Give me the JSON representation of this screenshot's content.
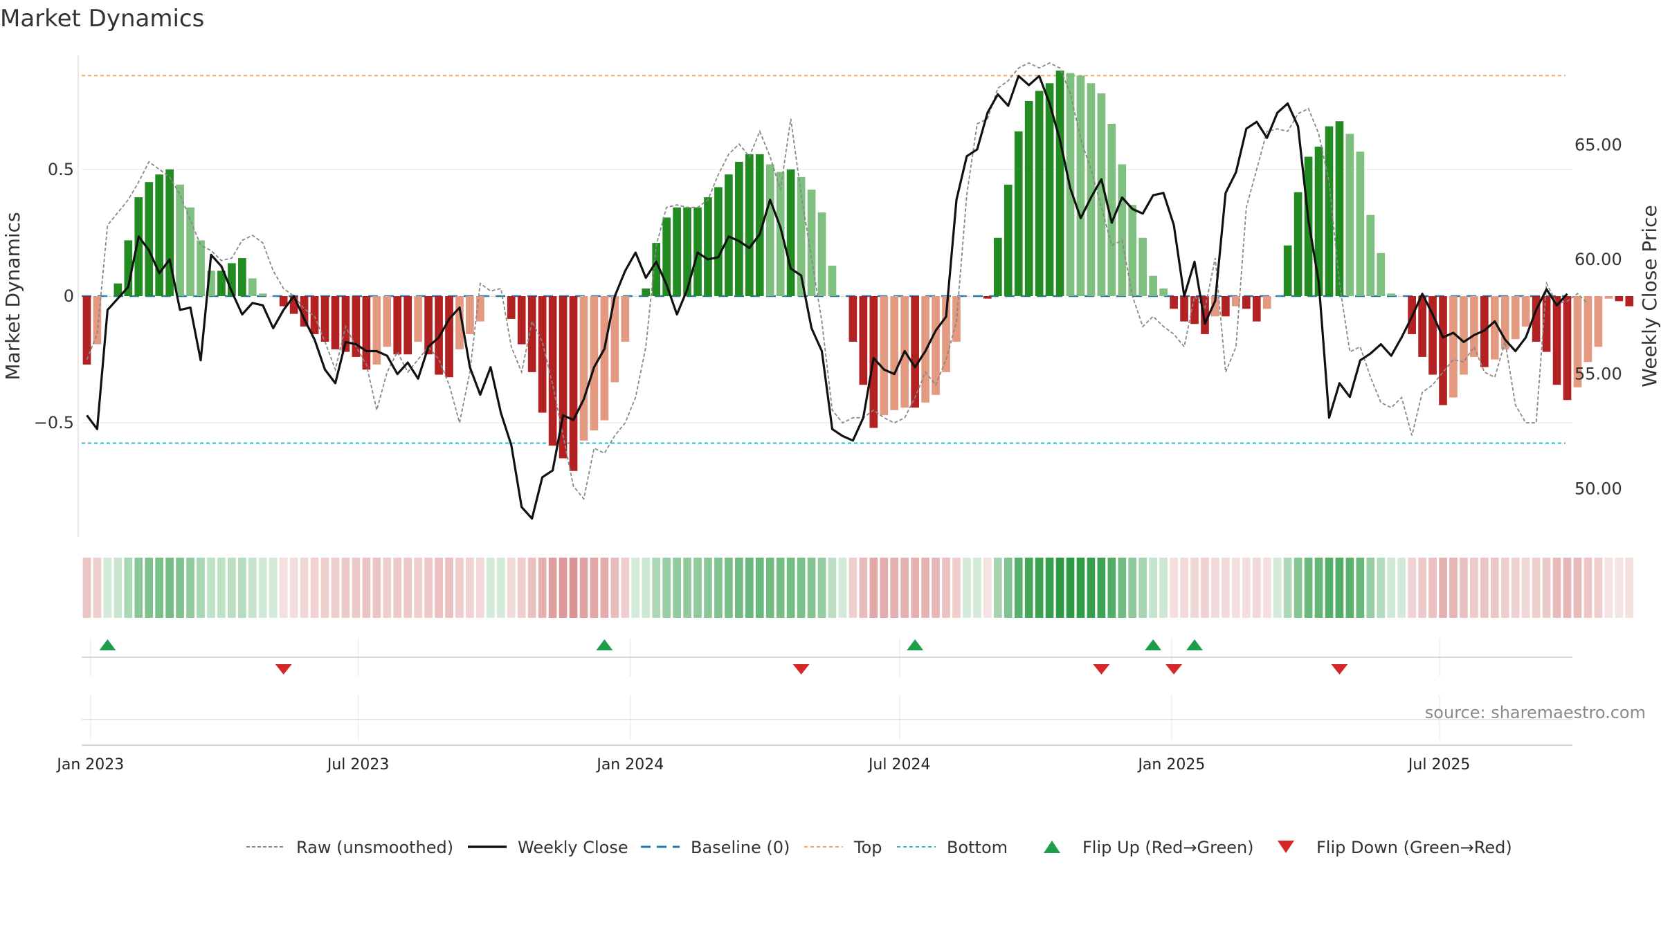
{
  "title": "Market Dynamics",
  "source": "source: sharemaestro.com",
  "colors": {
    "green_strong": "#228b22",
    "green_light": "#7fbf7f",
    "red_strong": "#b22222",
    "red_light": "#e39a80",
    "top_line": "#f4a460",
    "bottom_line": "#22b8cf",
    "baseline": "#1f77b4",
    "close_line": "#111111",
    "raw_line": "#888888",
    "flip_up": "#1e9e4a",
    "flip_down": "#d62728"
  },
  "chart_data": {
    "type": "bar",
    "title": "Market Dynamics",
    "ylabel": "Market Dynamics",
    "y2label": "Weekly Close Price",
    "ylim": [
      -0.95,
      0.95
    ],
    "y2lim": [
      47.9,
      68.9
    ],
    "yticks": [
      "0.5",
      "0",
      "−0.5"
    ],
    "y2ticks": [
      "65.00",
      "60.00",
      "55.00",
      "50.00"
    ],
    "xticks": [
      "Jan 2023",
      "Jul 2023",
      "Jan 2024",
      "Jul 2024",
      "Jan 2025",
      "Jul 2025"
    ],
    "xtick_dates": [
      "2023-01-01",
      "2023-07-01",
      "2024-01-01",
      "2024-07-01",
      "2025-01-01",
      "2025-07-01"
    ],
    "x_start": "2022-12-26",
    "weeks": 144,
    "reference_lines": {
      "top": 0.87,
      "bottom": -0.58,
      "baseline": 0
    },
    "grid": true,
    "legend_position": "bottom",
    "series": [
      {
        "name": "Raw (unsmoothed)",
        "kind": "dashed-line",
        "values": [
          -0.25,
          -0.15,
          0.28,
          0.33,
          0.38,
          0.45,
          0.53,
          0.5,
          0.47,
          0.4,
          0.3,
          0.2,
          0.18,
          0.14,
          0.15,
          0.22,
          0.24,
          0.21,
          0.1,
          0.03,
          0,
          -0.05,
          -0.08,
          -0.18,
          -0.29,
          -0.12,
          -0.2,
          -0.27,
          -0.45,
          -0.3,
          -0.22,
          -0.3,
          -0.25,
          -0.2,
          -0.25,
          -0.35,
          -0.5,
          -0.3,
          0.05,
          0.02,
          0.03,
          -0.2,
          -0.3,
          -0.1,
          -0.18,
          -0.35,
          -0.55,
          -0.75,
          -0.8,
          -0.6,
          -0.62,
          -0.55,
          -0.5,
          -0.4,
          -0.2,
          0.2,
          0.35,
          0.36,
          0.35,
          0.35,
          0.38,
          0.48,
          0.56,
          0.6,
          0.55,
          0.65,
          0.55,
          0.42,
          0.7,
          0.4,
          0.15,
          -0.1,
          -0.45,
          -0.5,
          -0.48,
          -0.48,
          -0.45,
          -0.48,
          -0.5,
          -0.48,
          -0.4,
          -0.3,
          -0.35,
          -0.25,
          -0.1,
          0.4,
          0.68,
          0.7,
          0.82,
          0.85,
          0.9,
          0.92,
          0.9,
          0.92,
          0.9,
          0.8,
          0.62,
          0.5,
          0.35,
          0.2,
          0.22,
          0,
          -0.12,
          -0.08,
          -0.12,
          -0.15,
          -0.2,
          0,
          -0.05,
          0.15,
          -0.3,
          -0.2,
          0.35,
          0.5,
          0.65,
          0.66,
          0.65,
          0.72,
          0.74,
          0.64,
          0.45,
          0.05,
          -0.22,
          -0.2,
          -0.32,
          -0.42,
          -0.44,
          -0.4,
          -0.55,
          -0.38,
          -0.35,
          -0.3,
          -0.25,
          -0.26,
          -0.2,
          -0.3,
          -0.32,
          -0.18,
          -0.43,
          -0.5,
          -0.5,
          0.05,
          -0.03,
          -0.02,
          0.01,
          -0.03
        ]
      },
      {
        "name": "Weekly Close",
        "kind": "line",
        "values": [
          53.2,
          52.6,
          57.8,
          58.3,
          58.8,
          61.0,
          60.4,
          59.4,
          60.0,
          57.8,
          57.9,
          55.6,
          60.2,
          59.7,
          58.6,
          57.6,
          58.1,
          58.0,
          57.0,
          57.8,
          58.4,
          57.4,
          56.5,
          55.2,
          54.6,
          56.4,
          56.3,
          56.0,
          56.0,
          55.8,
          55.0,
          55.5,
          54.8,
          56.2,
          56.6,
          57.4,
          57.9,
          55.3,
          54.1,
          55.3,
          53.3,
          51.9,
          49.2,
          48.7,
          50.5,
          50.8,
          53.2,
          53.0,
          53.9,
          55.3,
          56.1,
          58.4,
          59.5,
          60.3,
          59.2,
          59.9,
          58.9,
          57.6,
          58.7,
          60.3,
          60.0,
          60.1,
          61.0,
          60.8,
          60.5,
          61.1,
          62.6,
          61.4,
          59.6,
          59.3,
          57.0,
          56.0,
          52.6,
          52.3,
          52.1,
          53.1,
          55.7,
          55.2,
          55.0,
          56.0,
          55.3,
          56.0,
          56.9,
          57.5,
          62.6,
          64.5,
          64.8,
          66.4,
          67.2,
          66.7,
          68.0,
          67.6,
          68.0,
          66.8,
          65.2,
          63.1,
          61.8,
          62.7,
          63.5,
          61.6,
          62.7,
          62.2,
          62.0,
          62.8,
          62.9,
          61.5,
          58.4,
          59.9,
          57.2,
          58.2,
          62.9,
          63.8,
          65.7,
          66.0,
          65.3,
          66.4,
          66.8,
          65.8,
          61.7,
          59.0,
          53.1,
          54.6,
          54.0,
          55.6,
          55.9,
          56.3,
          55.8,
          56.6,
          57.5,
          58.5,
          57.6,
          56.6,
          56.8,
          56.4,
          56.7,
          56.9,
          57.3,
          56.5,
          56.0,
          56.6,
          57.8,
          58.7,
          58.0,
          58.5
        ]
      },
      {
        "name": "Baseline (0)",
        "kind": "dashed-line"
      },
      {
        "name": "Top",
        "kind": "dotted-line"
      },
      {
        "name": "Bottom",
        "kind": "dotted-line"
      },
      {
        "name": "Market Dynamics bars",
        "kind": "bars",
        "values": [
          -0.27,
          -0.19,
          0,
          0.05,
          0.22,
          0.39,
          0.45,
          0.48,
          0.5,
          0.44,
          0.35,
          0.22,
          0.1,
          0.1,
          0.13,
          0.15,
          0.07,
          0.01,
          0,
          -0.04,
          -0.07,
          -0.12,
          -0.15,
          -0.18,
          -0.21,
          -0.22,
          -0.24,
          -0.29,
          -0.27,
          -0.2,
          -0.23,
          -0.23,
          -0.18,
          -0.23,
          -0.31,
          -0.32,
          -0.21,
          -0.15,
          -0.1,
          0,
          0,
          -0.09,
          -0.19,
          -0.3,
          -0.46,
          -0.59,
          -0.64,
          -0.69,
          -0.57,
          -0.53,
          -0.49,
          -0.34,
          -0.18,
          0,
          0.03,
          0.21,
          0.31,
          0.35,
          0.35,
          0.35,
          0.39,
          0.43,
          0.48,
          0.53,
          0.56,
          0.56,
          0.52,
          0.49,
          0.5,
          0.47,
          0.42,
          0.33,
          0.12,
          0,
          -0.18,
          -0.35,
          -0.52,
          -0.47,
          -0.45,
          -0.44,
          -0.44,
          -0.42,
          -0.39,
          -0.3,
          -0.18,
          0,
          0,
          -0.01,
          0.23,
          0.44,
          0.65,
          0.77,
          0.81,
          0.84,
          0.89,
          0.88,
          0.87,
          0.84,
          0.8,
          0.68,
          0.52,
          0.36,
          0.23,
          0.08,
          0.03,
          -0.05,
          -0.1,
          -0.11,
          -0.15,
          -0.08,
          -0.08,
          -0.04,
          -0.05,
          -0.1,
          -0.05,
          0,
          0.2,
          0.41,
          0.55,
          0.59,
          0.67,
          0.69,
          0.64,
          0.57,
          0.32,
          0.17,
          0.01,
          0,
          -0.15,
          -0.24,
          -0.31,
          -0.43,
          -0.4,
          -0.31,
          -0.24,
          -0.28,
          -0.25,
          -0.21,
          -0.17,
          -0.12,
          -0.18,
          -0.22,
          -0.35,
          -0.41,
          -0.36,
          -0.26,
          -0.2,
          -0.01,
          -0.02,
          -0.04
        ]
      },
      {
        "name": "Flip Up (Red→Green)",
        "kind": "marker-up",
        "weeks": [
          2,
          50,
          80,
          103,
          107
        ]
      },
      {
        "name": "Flip Down (Green→Red)",
        "kind": "marker-down",
        "weeks": [
          19,
          69,
          98,
          105,
          121
        ]
      }
    ]
  },
  "legend": [
    {
      "label": "Raw (unsmoothed)",
      "kind": "dashed-gray"
    },
    {
      "label": "Weekly Close",
      "kind": "solid-black"
    },
    {
      "label": "Baseline (0)",
      "kind": "dashed-blue"
    },
    {
      "label": "Top",
      "kind": "dotted-orange"
    },
    {
      "label": "Bottom",
      "kind": "dotted-cyan"
    },
    {
      "label": "Flip Up (Red→Green)",
      "kind": "triangle-up"
    },
    {
      "label": "Flip Down (Green→Red)",
      "kind": "triangle-down"
    }
  ]
}
